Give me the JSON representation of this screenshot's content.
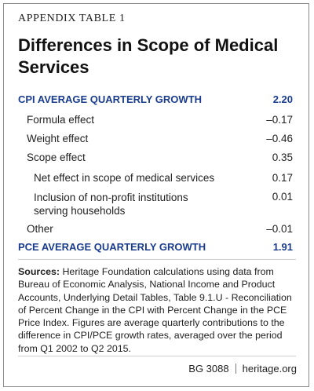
{
  "appendix_label": "APPENDIX TABLE 1",
  "title": "Differences in Scope of Medical Services",
  "rows": [
    {
      "label": "CPI AVERAGE QUARTERLY GROWTH",
      "value": "2.20"
    },
    {
      "label": "Formula effect",
      "value": "–0.17"
    },
    {
      "label": "Weight effect",
      "value": "–0.46"
    },
    {
      "label": "Scope effect",
      "value": "0.35"
    },
    {
      "label": "Net effect in scope of medical services",
      "value": "0.17"
    },
    {
      "label_lines": [
        "Inclusion of non-profit institutions",
        "serving households"
      ],
      "value": "0.01"
    },
    {
      "label": "Other",
      "value": "–0.01"
    },
    {
      "label": "PCE AVERAGE QUARTERLY GROWTH",
      "value": "1.91"
    }
  ],
  "sources": {
    "heading": "Sources:",
    "text": "Heritage Foundation calculations using data from Bureau of Economic Analysis, National Income and Product Accounts, Underlying Detail Tables, Table 9.1.U - Reconciliation of Percent Change in the CPI with Percent Change in the PCE Price Index. Figures are average quarterly contributions to the difference in CPI/PCE growth rates, averaged over the period from Q1 2002 to Q2 2015."
  },
  "footer": {
    "report_id": "BG 3088",
    "site": "heritage.org"
  },
  "colors": {
    "heading_blue": "#1a3c8e",
    "text": "#222222",
    "border": "#8a8a8a"
  }
}
